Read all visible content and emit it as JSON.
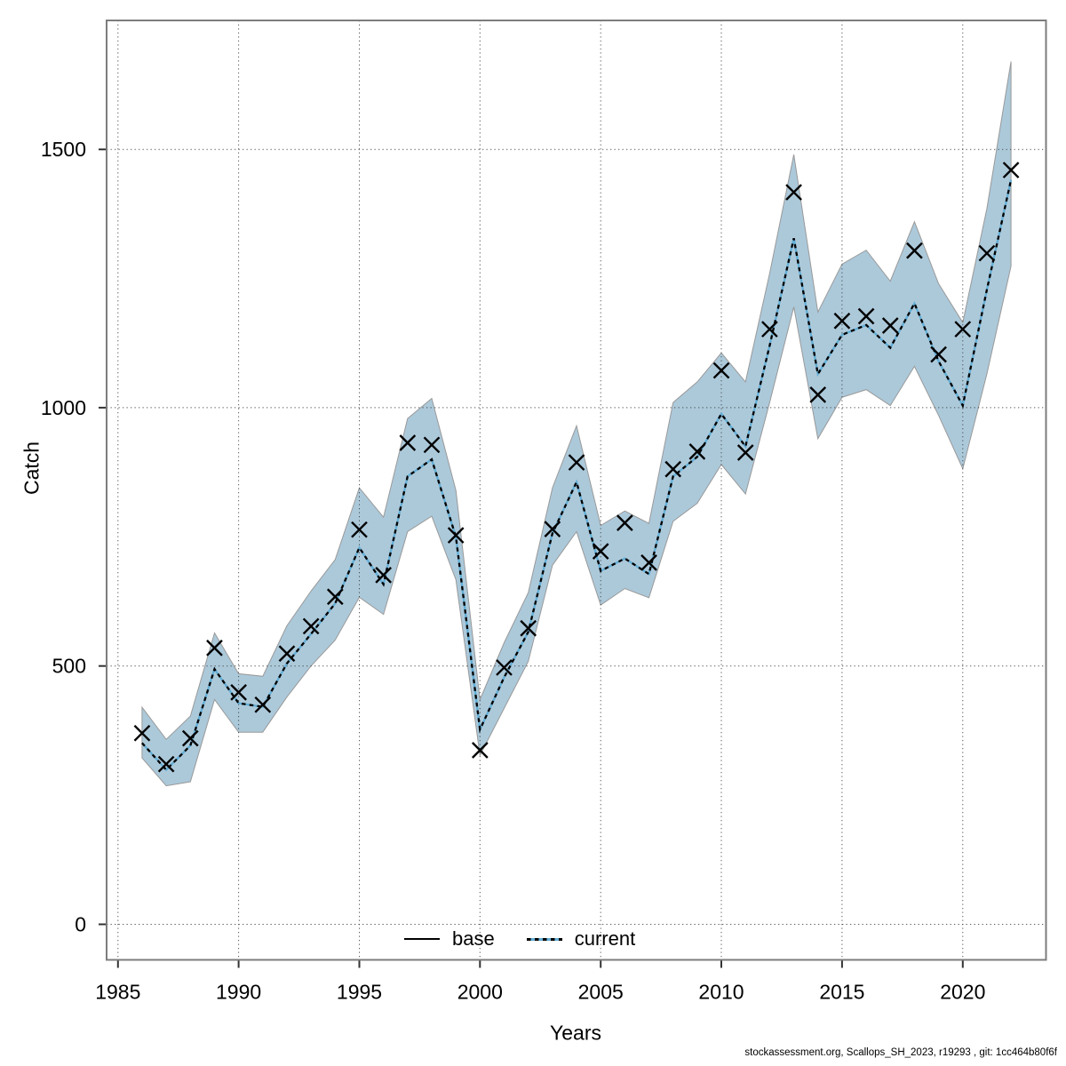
{
  "footer": {
    "text": "stockassessment.org, Scallops_SH_2023, r19293 , git: 1cc464b80f6f"
  },
  "chart_data": {
    "type": "line",
    "title": "",
    "xlabel": "Years",
    "ylabel": "Catch",
    "x": [
      1986,
      1987,
      1988,
      1989,
      1990,
      1991,
      1992,
      1993,
      1994,
      1995,
      1996,
      1997,
      1998,
      1999,
      2000,
      2001,
      2002,
      2003,
      2004,
      2005,
      2006,
      2007,
      2008,
      2009,
      2010,
      2011,
      2012,
      2013,
      2014,
      2015,
      2016,
      2017,
      2018,
      2019,
      2020,
      2021,
      2022
    ],
    "series": [
      {
        "name": "base",
        "style": "x-markers",
        "color": "#000000",
        "values": [
          370,
          310,
          360,
          535,
          449,
          425,
          524,
          577,
          634,
          764,
          676,
          932,
          928,
          753,
          337,
          497,
          573,
          765,
          894,
          722,
          777,
          700,
          881,
          915,
          1072,
          913,
          1152,
          1417,
          1025,
          1168,
          1177,
          1159,
          1304,
          1103,
          1152,
          1299,
          1460
        ]
      },
      {
        "name": "current",
        "style": "dashed-line",
        "color": "#62aed6",
        "values": [
          351,
          299,
          346,
          494,
          428,
          421,
          505,
          562,
          621,
          729,
          658,
          867,
          900,
          750,
          377,
          478,
          566,
          757,
          856,
          684,
          708,
          678,
          867,
          905,
          988,
          925,
          1120,
          1328,
          1065,
          1141,
          1160,
          1116,
          1202,
          1090,
          1004,
          1228,
          1441
        ]
      }
    ],
    "band": {
      "name": "current-confidence-interval",
      "fill": "#acc9da",
      "edge": "#999999",
      "upper": [
        420,
        358,
        403,
        564,
        485,
        480,
        578,
        645,
        706,
        845,
        788,
        979,
        1018,
        840,
        435,
        545,
        642,
        845,
        965,
        772,
        800,
        776,
        1010,
        1050,
        1106,
        1050,
        1260,
        1490,
        1185,
        1278,
        1305,
        1245,
        1360,
        1240,
        1165,
        1385,
        1670
      ],
      "lower": [
        322,
        268,
        276,
        435,
        372,
        372,
        440,
        500,
        550,
        633,
        600,
        760,
        790,
        667,
        327,
        418,
        509,
        695,
        760,
        618,
        650,
        632,
        780,
        815,
        890,
        833,
        1010,
        1195,
        940,
        1020,
        1035,
        1004,
        1080,
        985,
        882,
        1065,
        1274
      ]
    },
    "x_ticks": [
      1985,
      1990,
      1995,
      2000,
      2005,
      2010,
      2015,
      2020
    ],
    "y_ticks": [
      0,
      500,
      1000,
      1500
    ],
    "xlim": [
      1984.53,
      2023.45
    ],
    "ylim": [
      -68.8,
      1749.6
    ],
    "grid": "dotted-major",
    "legend": [
      {
        "label": "base"
      },
      {
        "label": "current"
      }
    ],
    "legend_position": "bottom-center-inside",
    "colors": {
      "frame": "#7d7d7d",
      "gridline": "#3a3a3a",
      "marker": "#000000",
      "current_dash_dark": "#000000",
      "current_dash_light": "#62aed6",
      "band_fill": "#acc9da",
      "band_edge": "#999999",
      "text": "#000000"
    }
  }
}
